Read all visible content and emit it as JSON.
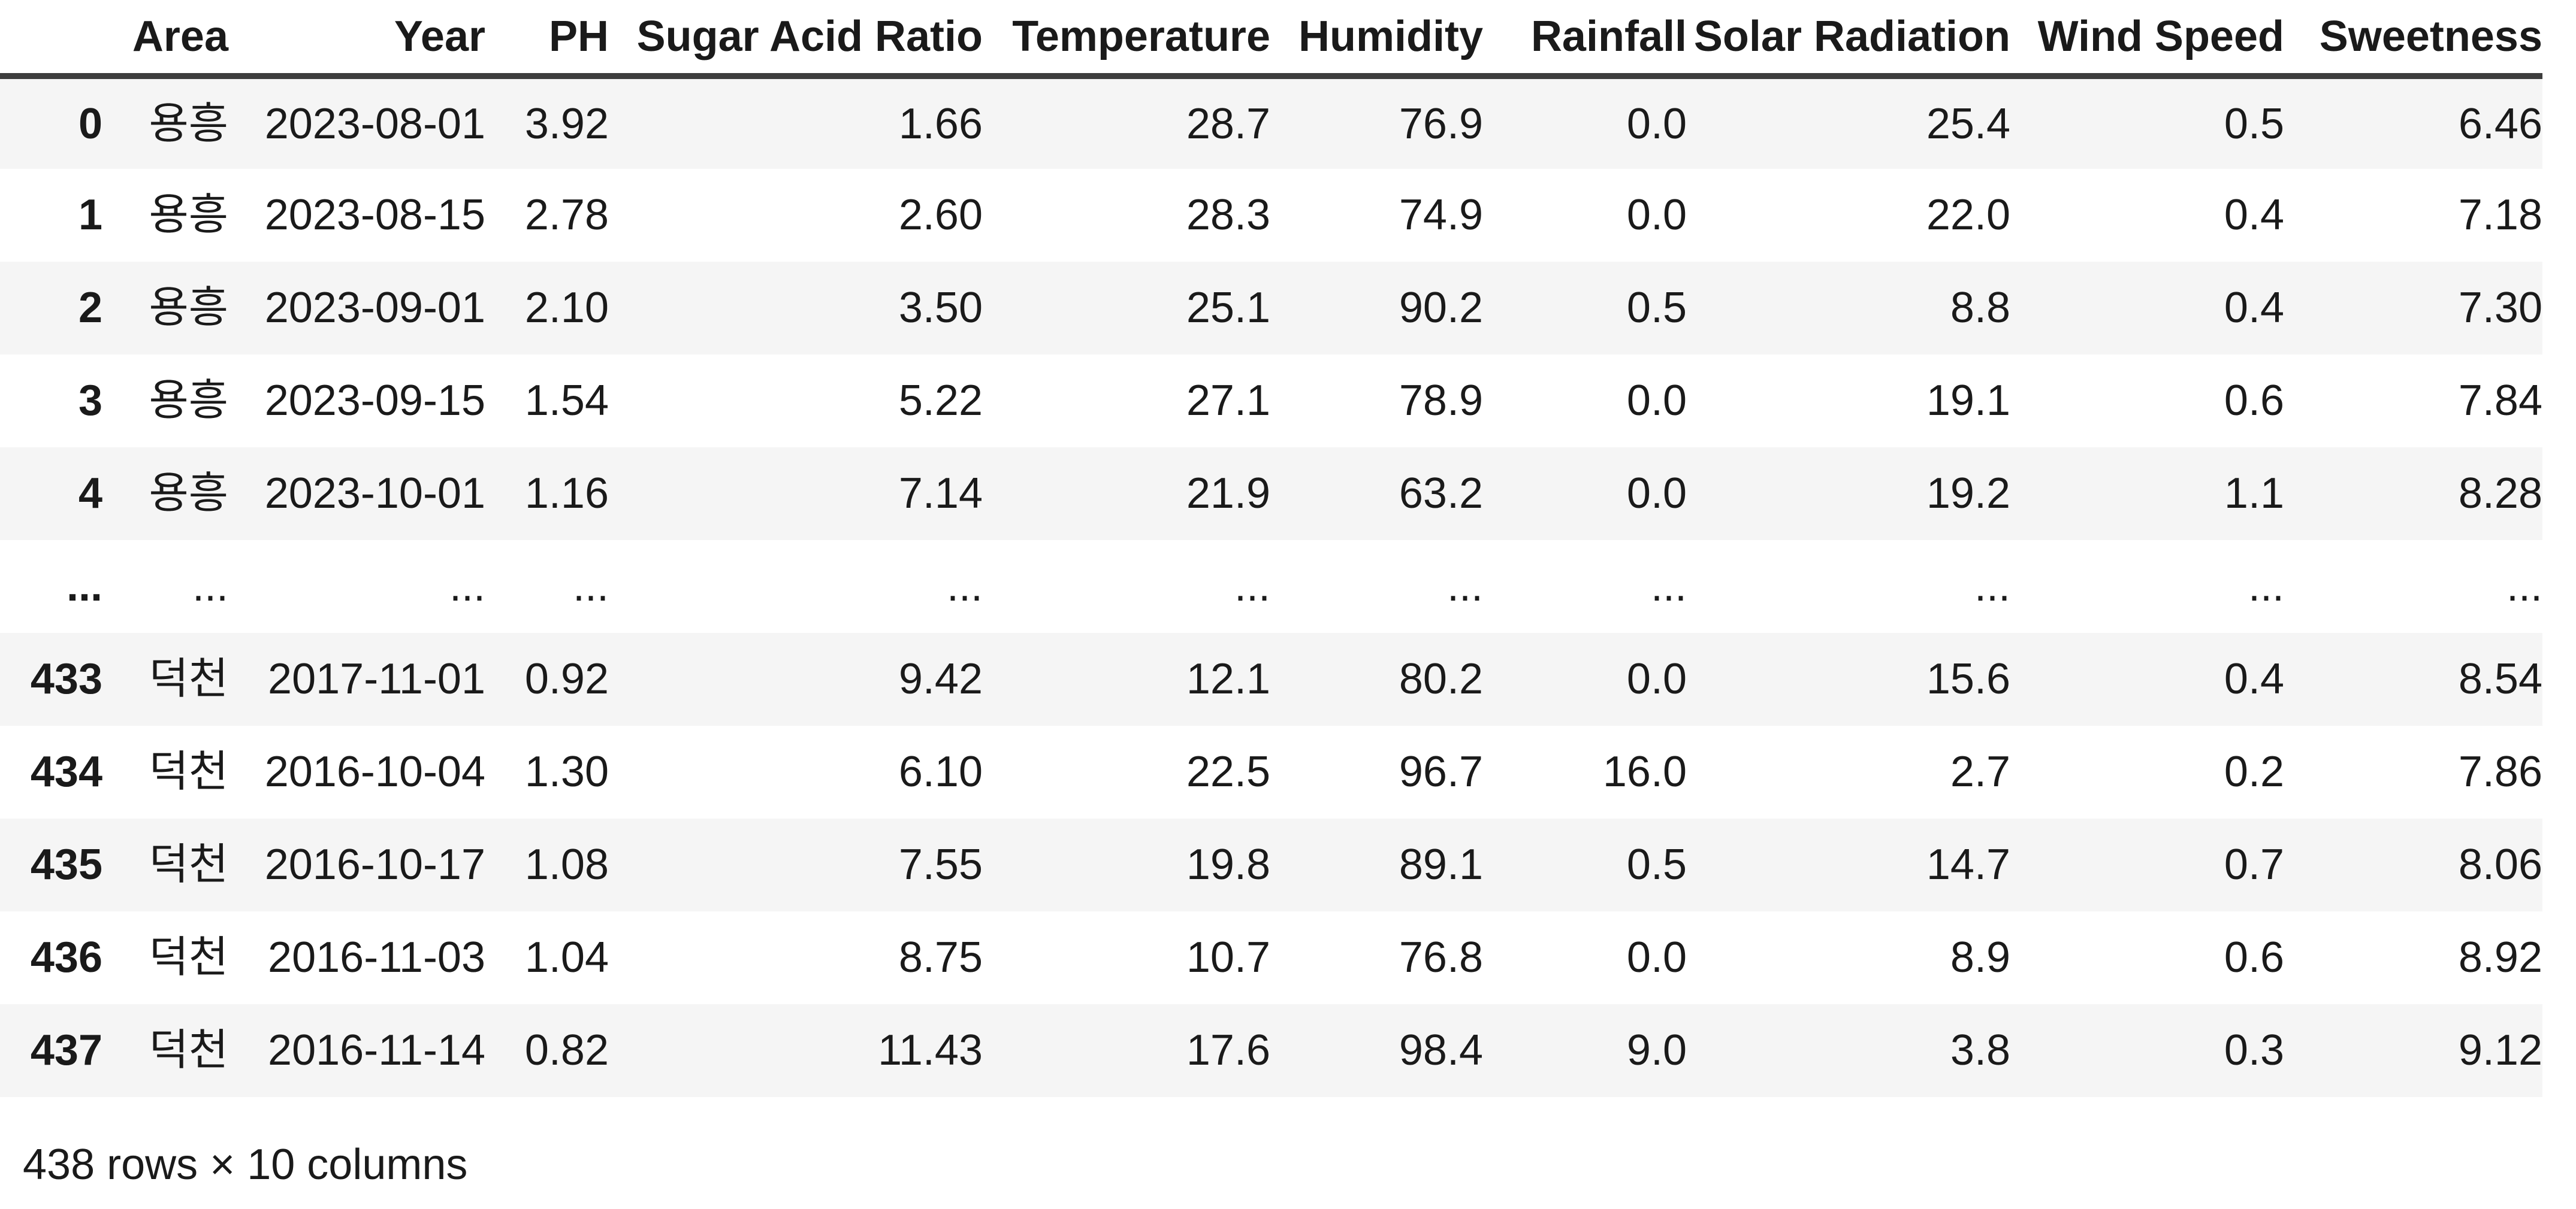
{
  "table": {
    "columns": [
      "Area",
      "Year",
      "PH",
      "Sugar Acid Ratio",
      "Temperature",
      "Humidity",
      "Rainfall",
      "Solar Radiation",
      "Wind Speed",
      "Sweetness"
    ],
    "rows": [
      {
        "index": "0",
        "cells": [
          "용흥",
          "2023-08-01",
          "3.92",
          "1.66",
          "28.7",
          "76.9",
          "0.0",
          "25.4",
          "0.5",
          "6.46"
        ]
      },
      {
        "index": "1",
        "cells": [
          "용흥",
          "2023-08-15",
          "2.78",
          "2.60",
          "28.3",
          "74.9",
          "0.0",
          "22.0",
          "0.4",
          "7.18"
        ]
      },
      {
        "index": "2",
        "cells": [
          "용흥",
          "2023-09-01",
          "2.10",
          "3.50",
          "25.1",
          "90.2",
          "0.5",
          "8.8",
          "0.4",
          "7.30"
        ]
      },
      {
        "index": "3",
        "cells": [
          "용흥",
          "2023-09-15",
          "1.54",
          "5.22",
          "27.1",
          "78.9",
          "0.0",
          "19.1",
          "0.6",
          "7.84"
        ]
      },
      {
        "index": "4",
        "cells": [
          "용흥",
          "2023-10-01",
          "1.16",
          "7.14",
          "21.9",
          "63.2",
          "0.0",
          "19.2",
          "1.1",
          "8.28"
        ]
      },
      {
        "index": "...",
        "cells": [
          "...",
          "...",
          "...",
          "...",
          "...",
          "...",
          "...",
          "...",
          "...",
          "..."
        ]
      },
      {
        "index": "433",
        "cells": [
          "덕천",
          "2017-11-01",
          "0.92",
          "9.42",
          "12.1",
          "80.2",
          "0.0",
          "15.6",
          "0.4",
          "8.54"
        ]
      },
      {
        "index": "434",
        "cells": [
          "덕천",
          "2016-10-04",
          "1.30",
          "6.10",
          "22.5",
          "96.7",
          "16.0",
          "2.7",
          "0.2",
          "7.86"
        ]
      },
      {
        "index": "435",
        "cells": [
          "덕천",
          "2016-10-17",
          "1.08",
          "7.55",
          "19.8",
          "89.1",
          "0.5",
          "14.7",
          "0.7",
          "8.06"
        ]
      },
      {
        "index": "436",
        "cells": [
          "덕천",
          "2016-11-03",
          "1.04",
          "8.75",
          "10.7",
          "76.8",
          "0.0",
          "8.9",
          "0.6",
          "8.92"
        ]
      },
      {
        "index": "437",
        "cells": [
          "덕천",
          "2016-11-14",
          "0.82",
          "11.43",
          "17.6",
          "98.4",
          "9.0",
          "3.8",
          "0.3",
          "9.12"
        ]
      }
    ],
    "footer": "438 rows × 10 columns"
  },
  "colors": {
    "stripe": "#f5f5f5",
    "header_border": "#3d3d3d",
    "text": "#1a1a1a",
    "background": "#ffffff"
  }
}
